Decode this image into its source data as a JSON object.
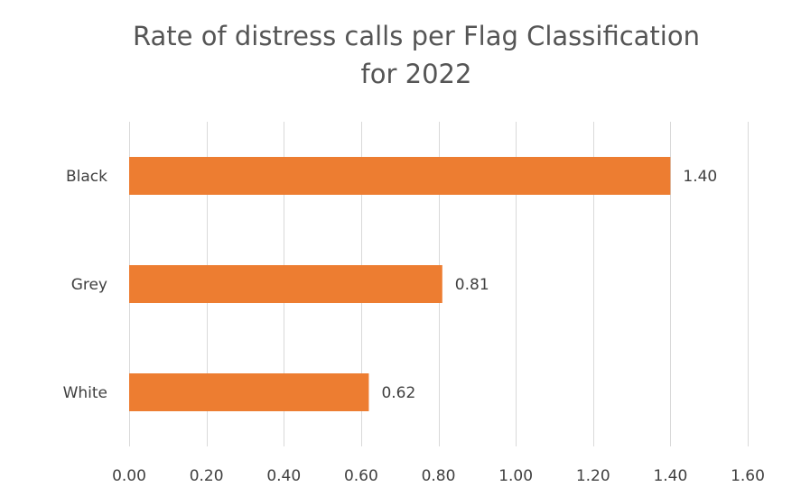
{
  "chart_data": {
    "type": "bar",
    "orientation": "horizontal",
    "title_lines": [
      "Rate of distress calls per Flag Classification",
      "for 2022"
    ],
    "categories": [
      "Black",
      "Grey",
      "White"
    ],
    "values": [
      1.4,
      0.81,
      0.62
    ],
    "value_labels": [
      "1.40",
      "0.81",
      "0.62"
    ],
    "xlim": [
      0,
      1.6
    ],
    "x_ticks": [
      0,
      0.2,
      0.4,
      0.6,
      0.8,
      1.0,
      1.2,
      1.4,
      1.6
    ],
    "x_tick_labels": [
      "0.00",
      "0.20",
      "0.40",
      "0.60",
      "0.80",
      "1.00",
      "1.20",
      "1.40",
      "1.60"
    ],
    "grid": "vertical",
    "legend": "none",
    "bar_color": "#ed7d31",
    "grid_color": "#d9d9d9"
  }
}
